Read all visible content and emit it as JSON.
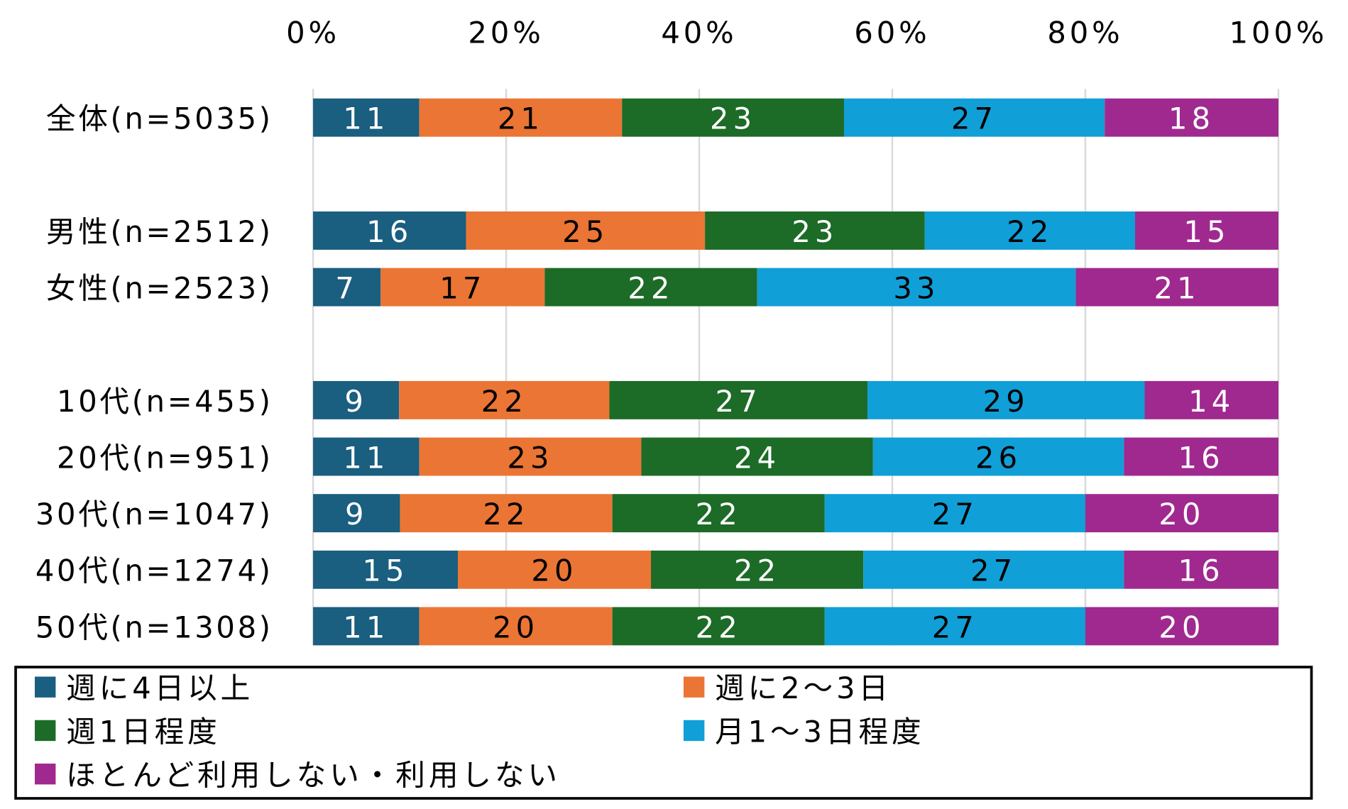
{
  "chart_data": {
    "type": "bar",
    "stacked": "percent",
    "orientation": "horizontal",
    "title": "",
    "xlabel": "",
    "ylabel": "",
    "xlim": [
      0,
      100
    ],
    "x_ticks": [
      "0%",
      "20%",
      "40%",
      "60%",
      "80%",
      "100%"
    ],
    "grid": true,
    "legend_position": "bottom",
    "categories": [
      "全体(n=5035)",
      "男性(n=2512)",
      "女性(n=2523)",
      "10代(n=455)",
      "20代(n=951)",
      "30代(n=1047)",
      "40代(n=1274)",
      "50代(n=1308)"
    ],
    "series": [
      {
        "name": "週に4日以上",
        "color": "#1a5e80",
        "label_color": "#ffffff",
        "values": [
          11,
          16,
          7,
          9,
          11,
          9,
          15,
          11
        ]
      },
      {
        "name": "週に2～3日",
        "color": "#eb7534",
        "label_color": "#000000",
        "values": [
          21,
          25,
          17,
          22,
          23,
          22,
          20,
          20
        ]
      },
      {
        "name": "週1日程度",
        "color": "#1c6b27",
        "label_color": "#ffffff",
        "values": [
          23,
          23,
          22,
          27,
          24,
          22,
          22,
          22
        ]
      },
      {
        "name": "月1～3日程度",
        "color": "#119fd8",
        "label_color": "#000000",
        "values": [
          27,
          22,
          33,
          29,
          26,
          27,
          27,
          27
        ]
      },
      {
        "name": "ほとんど利用しない・利用しない",
        "color": "#a0298f",
        "label_color": "#ffffff",
        "values": [
          18,
          15,
          21,
          14,
          16,
          20,
          16,
          20
        ]
      }
    ]
  }
}
